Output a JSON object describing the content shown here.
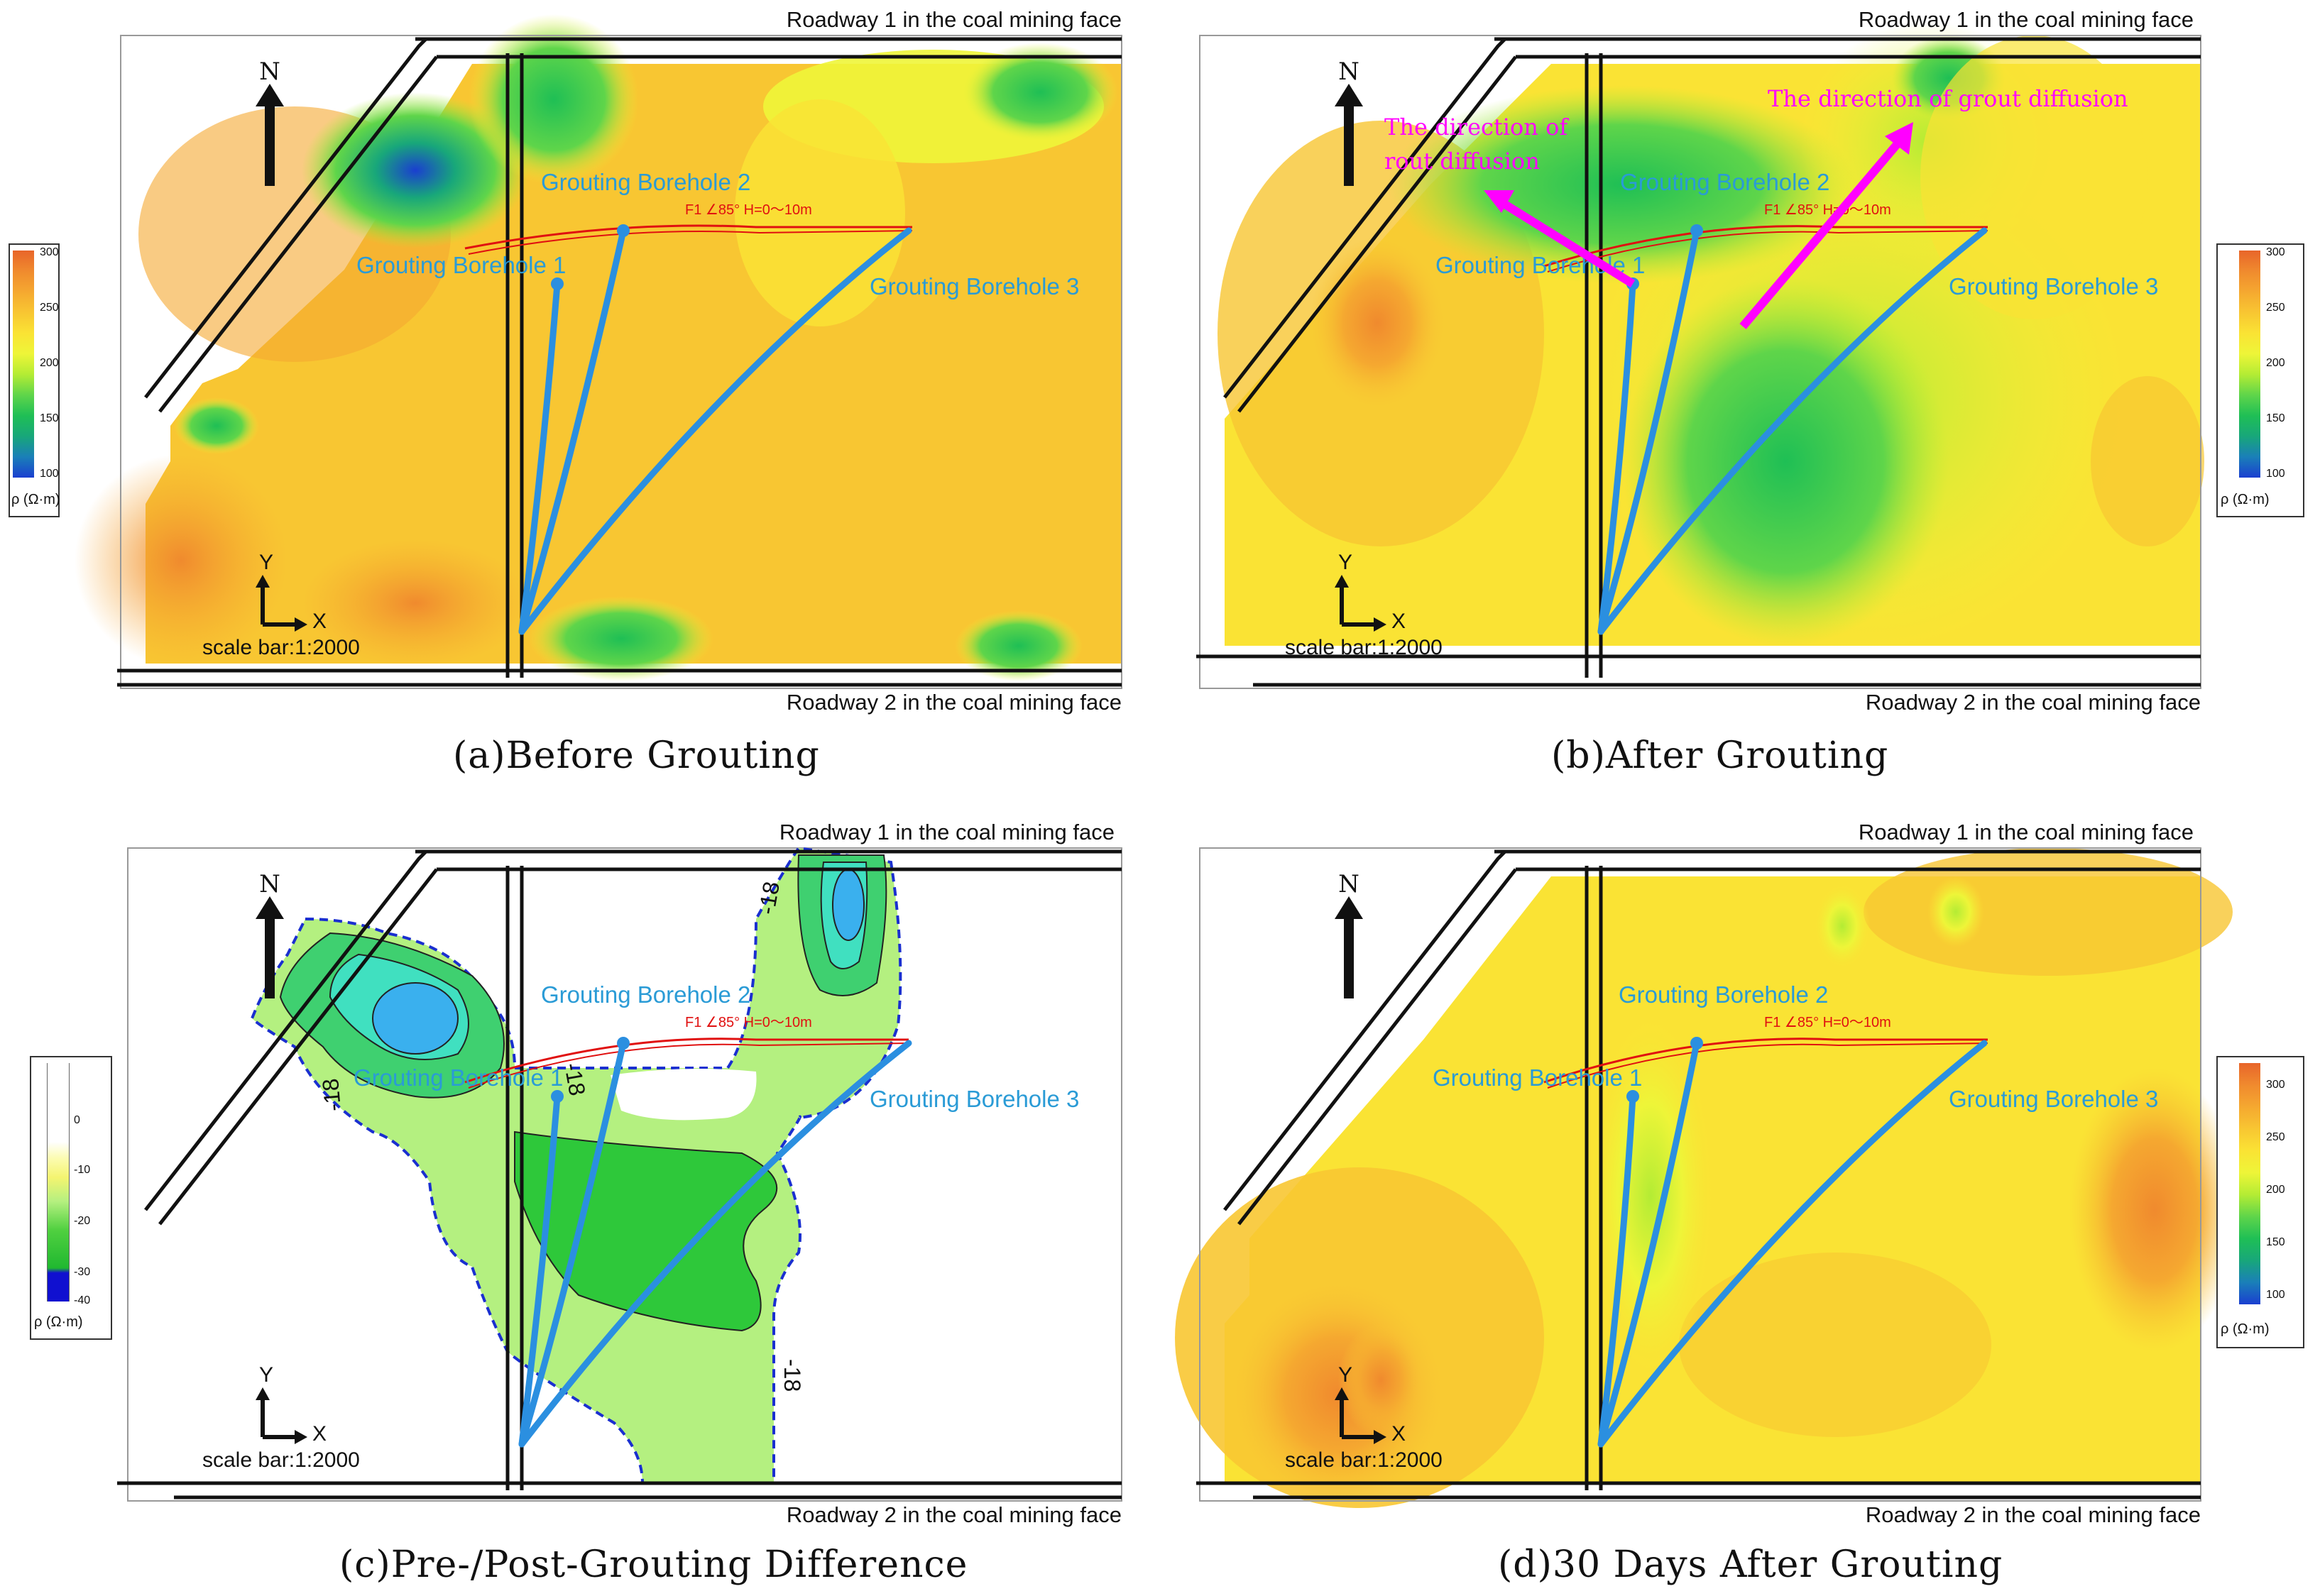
{
  "panels": [
    {
      "id": "a",
      "caption": "(a)Before Grouting",
      "roadway_top": "Roadway 1 in the coal mining face",
      "roadway_bottom": "Roadway 2 in the coal mining face",
      "north": "N",
      "axis_y": "Y",
      "axis_x": "X",
      "scale": "scale bar:1:2000",
      "boreholes": [
        "Grouting Borehole 1",
        "Grouting Borehole 2",
        "Grouting Borehole 3"
      ],
      "fault": "F1   ∠85°  H=0～10m"
    },
    {
      "id": "b",
      "caption": "(b)After Grouting",
      "roadway_top": "Roadway 1 in the coal mining face",
      "roadway_bottom": "Roadway 2 in the coal mining face",
      "north": "N",
      "axis_y": "Y",
      "axis_x": "X",
      "scale": "scale bar:1:2000",
      "boreholes": [
        "Grouting Borehole 1",
        "Grouting Borehole 2",
        "Grouting Borehole 3"
      ],
      "fault": "F1   ∠85°  H=0～10m",
      "direction_left_line1": "The direction of",
      "direction_left_line2": "rout diffusion",
      "direction_right": "The direction of grout diffusion"
    },
    {
      "id": "c",
      "caption": "(c)Pre-/Post-Grouting Difference",
      "roadway_top": "Roadway 1 in the coal mining face",
      "roadway_bottom": "Roadway 2 in the coal mining face",
      "north": "N",
      "axis_y": "Y",
      "axis_x": "X",
      "scale": "scale bar:1:2000",
      "boreholes": [
        "Grouting Borehole 1",
        "Grouting Borehole 2",
        "Grouting Borehole 3"
      ],
      "fault": "F1   ∠85°  H=0～10m",
      "contour_labels": [
        "-18",
        "-18",
        "-18",
        "-18"
      ]
    },
    {
      "id": "d",
      "caption": "(d)30 Days After Grouting",
      "roadway_top": "Roadway 1 in the coal mining face",
      "roadway_bottom": "Roadway 2 in the coal mining face",
      "north": "N",
      "axis_y": "Y",
      "axis_x": "X",
      "scale": "scale bar:1:2000",
      "boreholes": [
        "Grouting Borehole 1",
        "Grouting Borehole 2",
        "Grouting Borehole 3"
      ],
      "fault": "F1   ∠85°  H=0～10m"
    }
  ],
  "colorbar_resistivity": {
    "unit": "ρ (Ω·m)",
    "ticks": [
      "300",
      "250",
      "200",
      "150",
      "100"
    ],
    "colors": [
      "#e8652a",
      "#f08a2e",
      "#f5a830",
      "#f8c632",
      "#fae334",
      "#eef538",
      "#b4ec34",
      "#5fd54a",
      "#1fbf55",
      "#18a77a",
      "#1a7fb8",
      "#1a3fd0"
    ]
  },
  "colorbar_difference": {
    "unit": "ρ (Ω·m)",
    "ticks": [
      "0",
      "-10",
      "-20",
      "-30",
      "-40"
    ],
    "colors": [
      "#ffffff",
      "#ffffff",
      "#ffffff",
      "#fcfcb0",
      "#f4f470",
      "#b5f080",
      "#50d040",
      "#20b830",
      "#1010d0"
    ]
  },
  "colors": {
    "borehole": "#2b8fe0",
    "fault": "#e01010",
    "arrow_magenta": "#ff00ff",
    "contour_dashed": "#1a2fd0"
  }
}
